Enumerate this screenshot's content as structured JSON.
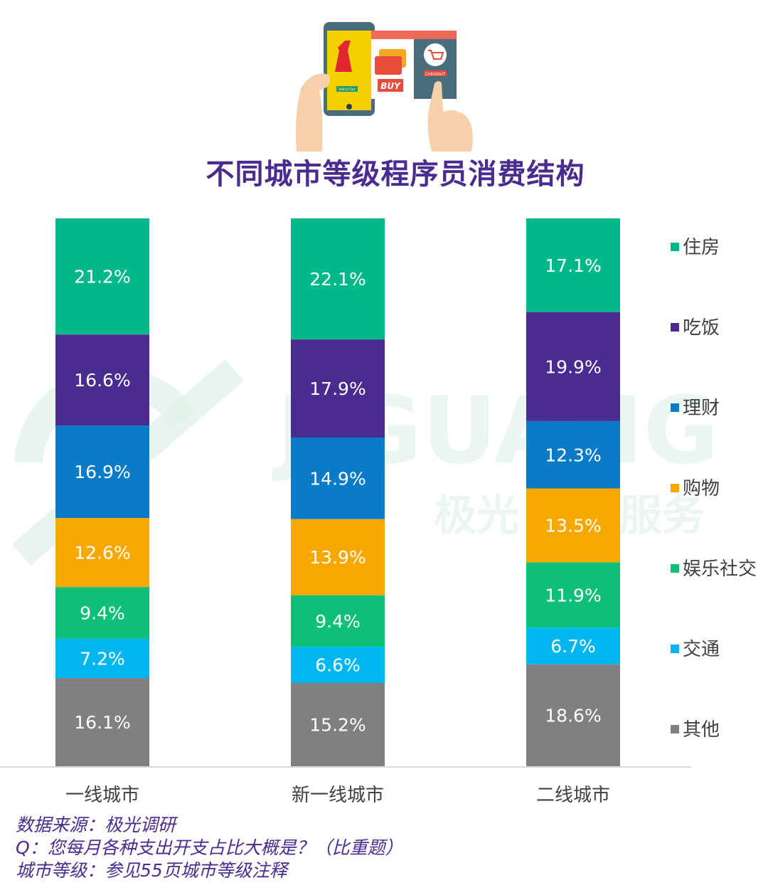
{
  "title": "不同城市等级程序员消费结构",
  "watermark": {
    "latin": "JIGUANG",
    "chinese": "极光 数据服务"
  },
  "illustration": {
    "buy_label": "BUY",
    "cart_label": "Add to Cart",
    "checkout_label": "CHECKOUT"
  },
  "chart_data": {
    "type": "bar",
    "stacked": true,
    "categories": [
      "一线城市",
      "新一线城市",
      "二线城市"
    ],
    "series": [
      {
        "name": "住房",
        "color": "#00b889",
        "values": [
          21.2,
          22.1,
          17.1
        ]
      },
      {
        "name": "吃饭",
        "color": "#4a2b8f",
        "values": [
          16.6,
          17.9,
          19.9
        ]
      },
      {
        "name": "理财",
        "color": "#0a7bc7",
        "values": [
          16.9,
          14.9,
          12.3
        ]
      },
      {
        "name": "购物",
        "color": "#f6a800",
        "values": [
          12.6,
          13.9,
          13.5
        ]
      },
      {
        "name": "娱乐社交",
        "color": "#0dbf77",
        "values": [
          9.4,
          9.4,
          11.9
        ]
      },
      {
        "name": "交通",
        "color": "#00b6ee",
        "values": [
          7.2,
          6.6,
          6.7
        ]
      },
      {
        "name": "其他",
        "color": "#808080",
        "values": [
          16.1,
          15.2,
          18.6
        ]
      }
    ],
    "value_suffix": "%",
    "legend_position": "right",
    "ylim": [
      0,
      100
    ]
  },
  "source_lines": [
    "数据来源：极光调研",
    "Q：您每月各种支出开支占比大概是？（比重题）",
    "城市等级：参见55页城市等级注释"
  ]
}
